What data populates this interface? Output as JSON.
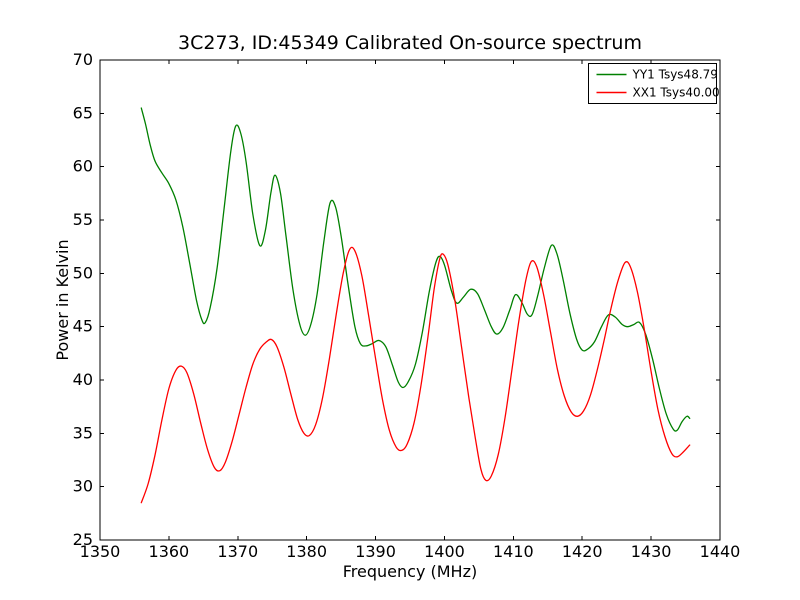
{
  "chart_data": {
    "type": "line",
    "title": "3C273, ID:45349 Calibrated On-source spectrum",
    "xlabel": "Frequency (MHz)",
    "ylabel": "Power in Kelvin",
    "xlim": [
      1350,
      1440
    ],
    "ylim": [
      25,
      70
    ],
    "x_ticks": [
      1350,
      1360,
      1370,
      1380,
      1390,
      1400,
      1410,
      1420,
      1430,
      1440
    ],
    "y_ticks": [
      25,
      30,
      35,
      40,
      45,
      50,
      55,
      60,
      65,
      70
    ],
    "grid": false,
    "legend": {
      "position": "upper right",
      "entries": [
        {
          "label": "YY1 Tsys48.79",
          "color": "#008000"
        },
        {
          "label": "XX1 Tsys40.00",
          "color": "#ff0000"
        }
      ]
    },
    "series": [
      {
        "name": "YY1 Tsys48.79",
        "color": "#008000",
        "points": [
          [
            1356.0,
            65.5
          ],
          [
            1356.6,
            64.0
          ],
          [
            1357.3,
            62.0
          ],
          [
            1358.0,
            60.5
          ],
          [
            1359.0,
            59.4
          ],
          [
            1360.0,
            58.4
          ],
          [
            1361.0,
            56.9
          ],
          [
            1362.0,
            54.4
          ],
          [
            1363.0,
            51.0
          ],
          [
            1364.0,
            47.5
          ],
          [
            1364.8,
            45.6
          ],
          [
            1365.3,
            45.4
          ],
          [
            1366.0,
            46.8
          ],
          [
            1367.0,
            50.5
          ],
          [
            1368.0,
            56.0
          ],
          [
            1369.0,
            61.5
          ],
          [
            1369.7,
            63.8
          ],
          [
            1370.4,
            63.2
          ],
          [
            1371.2,
            60.5
          ],
          [
            1372.2,
            55.5
          ],
          [
            1373.2,
            52.6
          ],
          [
            1374.0,
            54.0
          ],
          [
            1374.8,
            57.5
          ],
          [
            1375.4,
            59.2
          ],
          [
            1376.2,
            57.5
          ],
          [
            1377.0,
            53.5
          ],
          [
            1378.0,
            48.5
          ],
          [
            1379.0,
            45.2
          ],
          [
            1379.8,
            44.2
          ],
          [
            1380.6,
            45.2
          ],
          [
            1381.5,
            48.0
          ],
          [
            1382.5,
            53.0
          ],
          [
            1383.4,
            56.6
          ],
          [
            1384.2,
            56.2
          ],
          [
            1385.0,
            53.5
          ],
          [
            1386.0,
            49.0
          ],
          [
            1387.0,
            45.0
          ],
          [
            1387.8,
            43.4
          ],
          [
            1388.6,
            43.2
          ],
          [
            1389.5,
            43.4
          ],
          [
            1390.5,
            43.7
          ],
          [
            1391.5,
            43.1
          ],
          [
            1392.5,
            41.3
          ],
          [
            1393.3,
            39.8
          ],
          [
            1394.0,
            39.3
          ],
          [
            1394.8,
            39.9
          ],
          [
            1395.8,
            41.5
          ],
          [
            1396.8,
            44.5
          ],
          [
            1397.8,
            48.3
          ],
          [
            1398.7,
            50.9
          ],
          [
            1399.3,
            51.6
          ],
          [
            1400.0,
            50.8
          ],
          [
            1401.0,
            48.4
          ],
          [
            1401.8,
            47.2
          ],
          [
            1402.8,
            47.8
          ],
          [
            1403.8,
            48.5
          ],
          [
            1404.8,
            48.1
          ],
          [
            1405.8,
            46.6
          ],
          [
            1406.8,
            45.0
          ],
          [
            1407.6,
            44.3
          ],
          [
            1408.5,
            44.9
          ],
          [
            1409.5,
            46.6
          ],
          [
            1410.3,
            48.0
          ],
          [
            1411.2,
            47.3
          ],
          [
            1412.0,
            46.2
          ],
          [
            1412.7,
            46.1
          ],
          [
            1413.5,
            47.8
          ],
          [
            1414.5,
            50.5
          ],
          [
            1415.5,
            52.6
          ],
          [
            1416.3,
            51.9
          ],
          [
            1417.2,
            49.5
          ],
          [
            1418.2,
            46.3
          ],
          [
            1419.2,
            43.8
          ],
          [
            1420.0,
            42.8
          ],
          [
            1420.8,
            42.9
          ],
          [
            1421.8,
            43.6
          ],
          [
            1422.8,
            45.0
          ],
          [
            1423.8,
            46.1
          ],
          [
            1424.8,
            45.9
          ],
          [
            1425.8,
            45.2
          ],
          [
            1426.6,
            45.0
          ],
          [
            1427.5,
            45.2
          ],
          [
            1428.3,
            45.4
          ],
          [
            1429.2,
            44.3
          ],
          [
            1430.2,
            42.0
          ],
          [
            1431.2,
            39.2
          ],
          [
            1432.2,
            36.8
          ],
          [
            1433.2,
            35.4
          ],
          [
            1433.8,
            35.3
          ],
          [
            1434.5,
            36.1
          ],
          [
            1435.2,
            36.6
          ],
          [
            1435.6,
            36.4
          ]
        ]
      },
      {
        "name": "XX1 Tsys40.00",
        "color": "#ff0000",
        "points": [
          [
            1356.0,
            28.5
          ],
          [
            1357.0,
            30.3
          ],
          [
            1358.0,
            33.0
          ],
          [
            1359.0,
            36.3
          ],
          [
            1360.0,
            39.2
          ],
          [
            1361.0,
            40.9
          ],
          [
            1361.8,
            41.3
          ],
          [
            1362.6,
            40.7
          ],
          [
            1363.6,
            38.7
          ],
          [
            1364.6,
            36.0
          ],
          [
            1365.6,
            33.5
          ],
          [
            1366.6,
            31.8
          ],
          [
            1367.4,
            31.5
          ],
          [
            1368.2,
            32.3
          ],
          [
            1369.2,
            34.3
          ],
          [
            1370.2,
            36.8
          ],
          [
            1371.2,
            39.3
          ],
          [
            1372.2,
            41.5
          ],
          [
            1373.2,
            42.9
          ],
          [
            1374.2,
            43.6
          ],
          [
            1374.9,
            43.8
          ],
          [
            1375.7,
            43.1
          ],
          [
            1376.7,
            41.2
          ],
          [
            1377.7,
            38.7
          ],
          [
            1378.7,
            36.3
          ],
          [
            1379.6,
            35.0
          ],
          [
            1380.4,
            34.8
          ],
          [
            1381.3,
            35.8
          ],
          [
            1382.3,
            38.3
          ],
          [
            1383.3,
            42.0
          ],
          [
            1384.3,
            46.2
          ],
          [
            1385.3,
            50.0
          ],
          [
            1386.2,
            52.2
          ],
          [
            1387.0,
            52.1
          ],
          [
            1388.0,
            49.8
          ],
          [
            1389.0,
            46.0
          ],
          [
            1390.0,
            42.0
          ],
          [
            1391.0,
            38.2
          ],
          [
            1392.0,
            35.3
          ],
          [
            1393.0,
            33.7
          ],
          [
            1393.8,
            33.4
          ],
          [
            1394.6,
            34.0
          ],
          [
            1395.6,
            36.0
          ],
          [
            1396.6,
            39.5
          ],
          [
            1397.6,
            44.0
          ],
          [
            1398.5,
            48.5
          ],
          [
            1399.3,
            51.3
          ],
          [
            1399.8,
            51.8
          ],
          [
            1400.5,
            50.8
          ],
          [
            1401.5,
            47.5
          ],
          [
            1402.5,
            43.0
          ],
          [
            1403.5,
            38.5
          ],
          [
            1404.5,
            34.5
          ],
          [
            1405.3,
            31.6
          ],
          [
            1406.0,
            30.6
          ],
          [
            1406.8,
            31.0
          ],
          [
            1407.8,
            33.0
          ],
          [
            1408.8,
            36.5
          ],
          [
            1409.8,
            41.0
          ],
          [
            1410.8,
            45.5
          ],
          [
            1411.8,
            49.3
          ],
          [
            1412.6,
            51.1
          ],
          [
            1413.4,
            50.6
          ],
          [
            1414.4,
            48.0
          ],
          [
            1415.4,
            44.5
          ],
          [
            1416.4,
            41.0
          ],
          [
            1417.4,
            38.5
          ],
          [
            1418.4,
            37.0
          ],
          [
            1419.3,
            36.6
          ],
          [
            1420.2,
            37.1
          ],
          [
            1421.2,
            38.6
          ],
          [
            1422.2,
            41.0
          ],
          [
            1423.2,
            43.8
          ],
          [
            1424.2,
            46.8
          ],
          [
            1425.2,
            49.3
          ],
          [
            1426.2,
            51.0
          ],
          [
            1427.0,
            50.6
          ],
          [
            1428.0,
            48.3
          ],
          [
            1429.0,
            44.8
          ],
          [
            1430.0,
            40.8
          ],
          [
            1431.0,
            37.2
          ],
          [
            1432.0,
            34.7
          ],
          [
            1433.0,
            33.1
          ],
          [
            1433.8,
            32.8
          ],
          [
            1434.6,
            33.2
          ],
          [
            1435.6,
            33.9
          ]
        ]
      }
    ]
  }
}
